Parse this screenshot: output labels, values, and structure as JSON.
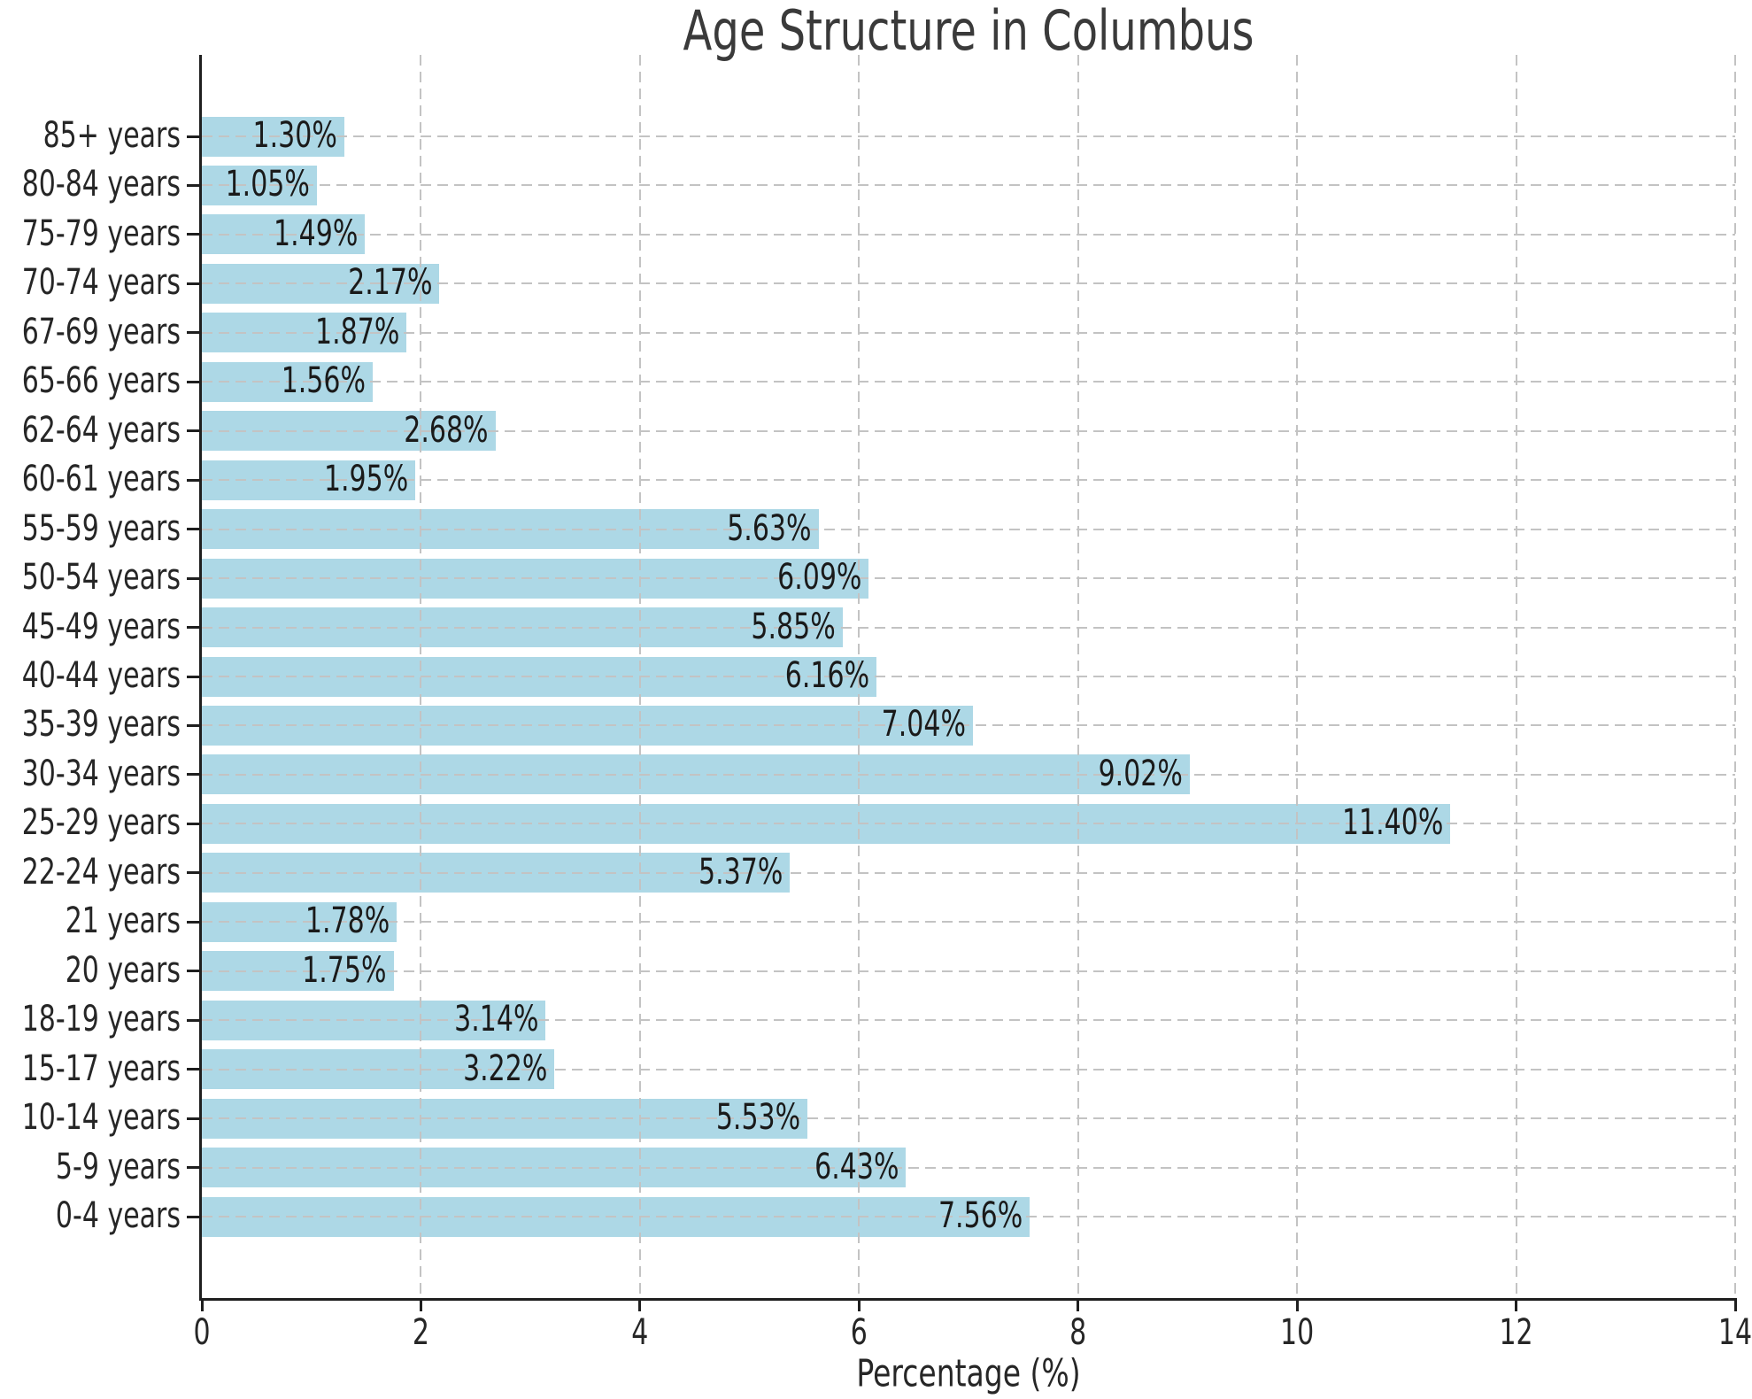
{
  "chart_data": {
    "type": "bar",
    "orientation": "horizontal",
    "title": "Age Structure in Columbus",
    "xlabel": "Percentage (%)",
    "ylabel": "",
    "categories_top_to_bottom": [
      "85+ years",
      "80-84 years",
      "75-79 years",
      "70-74 years",
      "67-69 years",
      "65-66 years",
      "62-64 years",
      "60-61 years",
      "55-59 years",
      "50-54 years",
      "45-49 years",
      "40-44 years",
      "35-39 years",
      "30-34 years",
      "25-29 years",
      "22-24 years",
      "21 years",
      "20 years",
      "18-19 years",
      "15-17 years",
      "10-14 years",
      "5-9 years",
      "0-4 years"
    ],
    "values": [
      1.3,
      1.05,
      1.49,
      2.17,
      1.87,
      1.56,
      2.68,
      1.95,
      5.63,
      6.09,
      5.85,
      6.16,
      7.04,
      9.02,
      11.4,
      5.37,
      1.78,
      1.75,
      3.14,
      3.22,
      5.53,
      6.43,
      7.56
    ],
    "value_labels": [
      "1.30%",
      "1.05%",
      "1.49%",
      "2.17%",
      "1.87%",
      "1.56%",
      "2.68%",
      "1.95%",
      "5.63%",
      "6.09%",
      "5.85%",
      "6.16%",
      "7.04%",
      "9.02%",
      "11.40%",
      "5.37%",
      "1.78%",
      "1.75%",
      "3.14%",
      "3.22%",
      "5.53%",
      "6.43%",
      "7.56%"
    ],
    "xlim": [
      0,
      14
    ],
    "xticks": [
      "0",
      "2",
      "4",
      "6",
      "8",
      "10",
      "12",
      "14"
    ],
    "grid": "both-dashed",
    "legend_position": "none",
    "bar_color": "#ADD8E6",
    "grid_color": "#c3c3c3",
    "axis_color": "#1f1f1f",
    "text_color": "#262626"
  }
}
